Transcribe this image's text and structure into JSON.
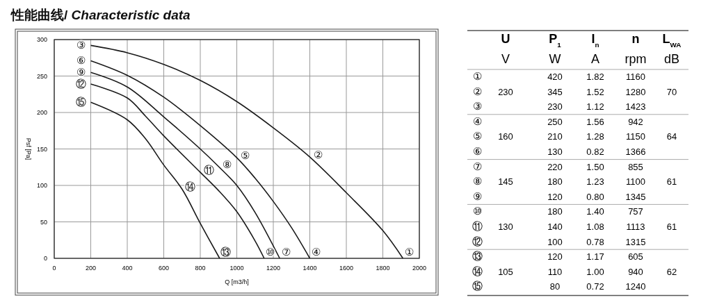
{
  "chart_data": [
    {
      "type": "line",
      "title": "性能曲线/ Characteristic data",
      "xlabel": "Q [m3/h]",
      "ylabel": "Psf [Pa]",
      "xlim": [
        0,
        2000
      ],
      "ylim": [
        0,
        300
      ],
      "xticks": [
        0,
        200,
        400,
        600,
        800,
        1000,
        1200,
        1400,
        1600,
        1800,
        2000
      ],
      "yticks": [
        0,
        50,
        100,
        150,
        200,
        250,
        300
      ],
      "grid": true,
      "line_style": "solid",
      "marker": "none",
      "series": [
        {
          "color": "#1a1a1a",
          "x": [
            200,
            400,
            600,
            800,
            1000,
            1200,
            1400,
            1600,
            1800,
            1910
          ],
          "values": [
            292,
            282,
            266,
            244,
            215,
            179,
            139,
            90,
            38,
            0
          ]
        },
        {
          "color": "#1a1a1a",
          "x": [
            200,
            400,
            600,
            800,
            1000,
            1100,
            1200,
            1300,
            1400
          ],
          "values": [
            271,
            251,
            221,
            182,
            138,
            110,
            78,
            42,
            0
          ]
        },
        {
          "color": "#1a1a1a",
          "x": [
            200,
            400,
            600,
            800,
            900,
            1000,
            1100,
            1235
          ],
          "values": [
            255,
            235,
            194,
            150,
            126,
            100,
            63,
            0
          ]
        },
        {
          "color": "#1a1a1a",
          "x": [
            200,
            400,
            500,
            600,
            800,
            900,
            1000,
            1100,
            1150
          ],
          "values": [
            239,
            220,
            195,
            168,
            118,
            93,
            64,
            24,
            0
          ]
        },
        {
          "color": "#1a1a1a",
          "x": [
            200,
            400,
            500,
            600,
            700,
            800,
            906
          ],
          "values": [
            214,
            190,
            164,
            128,
            95,
            48,
            0
          ]
        }
      ],
      "annotations": [
        {
          "text": "③",
          "x": 200,
          "y": 292
        },
        {
          "text": "⑥",
          "x": 200,
          "y": 271
        },
        {
          "text": "⑨",
          "x": 200,
          "y": 255
        },
        {
          "text": "⑫",
          "x": 200,
          "y": 239
        },
        {
          "text": "⑮",
          "x": 200,
          "y": 214
        },
        {
          "text": "①",
          "x": 1910,
          "y": 0
        },
        {
          "text": "④",
          "x": 1400,
          "y": 0
        },
        {
          "text": "⑦",
          "x": 1235,
          "y": 0
        },
        {
          "text": "⑩",
          "x": 1150,
          "y": 0
        },
        {
          "text": "⑬",
          "x": 906,
          "y": 0
        },
        {
          "text": "②",
          "x": 1400,
          "y": 139
        },
        {
          "text": "⑤",
          "x": 1000,
          "y": 138
        },
        {
          "text": "⑧",
          "x": 900,
          "y": 126
        },
        {
          "text": "⑪",
          "x": 800,
          "y": 118
        },
        {
          "text": "⑭",
          "x": 700,
          "y": 95
        }
      ]
    },
    {
      "type": "other",
      "categories": [
        "U",
        "P$_{1}$",
        "I$_{n}$",
        "n",
        "L$_{WA}$"
      ],
      "y_categories": [
        null,
        "①",
        "②",
        "③",
        "④",
        "⑤",
        "⑥",
        "⑦",
        "⑧",
        "⑨",
        "⑩",
        "⑪",
        "⑫",
        "⑬",
        "⑭",
        "⑮"
      ],
      "cell_labels": [
        [
          "V",
          "W",
          "A",
          "rpm",
          "dB"
        ],
        [
          null,
          "420",
          "1.82",
          "1160",
          null
        ],
        [
          "230",
          "345",
          "1.52",
          "1280",
          "70"
        ],
        [
          null,
          "230",
          "1.12",
          "1423",
          null
        ],
        [
          null,
          "250",
          "1.56",
          "942",
          null
        ],
        [
          "160",
          "210",
          "1.28",
          "1150",
          "64"
        ],
        [
          null,
          "130",
          "0.82",
          "1366",
          null
        ],
        [
          null,
          "220",
          "1.50",
          "855",
          null
        ],
        [
          "145",
          "180",
          "1.23",
          "1100",
          "61"
        ],
        [
          null,
          "120",
          "0.80",
          "1345",
          null
        ],
        [
          null,
          "180",
          "1.40",
          "757",
          null
        ],
        [
          "130",
          "140",
          "1.08",
          "1113",
          "61"
        ],
        [
          null,
          "100",
          "0.78",
          "1315",
          null
        ],
        [
          null,
          "120",
          "1.17",
          "605",
          null
        ],
        [
          "105",
          "110",
          "1.00",
          "940",
          "62"
        ],
        [
          null,
          "80",
          "0.72",
          "1240",
          null
        ]
      ]
    }
  ]
}
